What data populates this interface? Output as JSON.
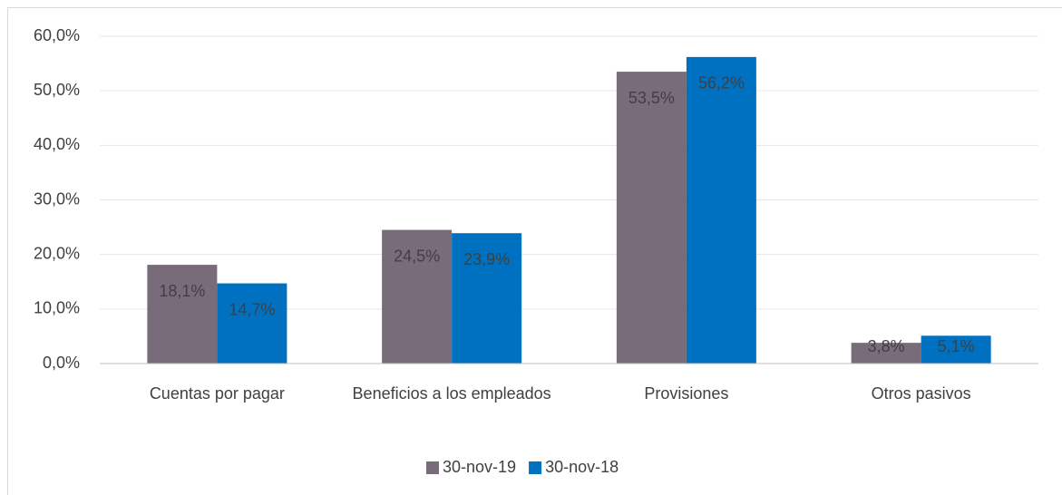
{
  "chart_data": {
    "type": "bar",
    "categories": [
      "Cuentas por pagar",
      "Beneficios a los empleados",
      "Provisiones",
      "Otros pasivos"
    ],
    "series": [
      {
        "name": "30-nov-19",
        "color": "#786b7a",
        "values": [
          18.1,
          24.5,
          53.5,
          3.8
        ],
        "value_labels": [
          "18,1%",
          "24,5%",
          "53,5%",
          "3,8%"
        ]
      },
      {
        "name": "30-nov-18",
        "color": "#0070c0",
        "values": [
          14.7,
          23.9,
          56.2,
          5.1
        ],
        "value_labels": [
          "14,7%",
          "23,9%",
          "56,2%",
          "5,1%"
        ]
      }
    ],
    "ylim": [
      0,
      60
    ],
    "yticks": [
      {
        "value": 0,
        "label": "0,0%"
      },
      {
        "value": 10,
        "label": "10,0%"
      },
      {
        "value": 20,
        "label": "20,0%"
      },
      {
        "value": 30,
        "label": "30,0%"
      },
      {
        "value": 40,
        "label": "40,0%"
      },
      {
        "value": 50,
        "label": "50,0%"
      },
      {
        "value": 60,
        "label": "60,0%"
      }
    ],
    "grid": true,
    "legend": "bottom"
  }
}
